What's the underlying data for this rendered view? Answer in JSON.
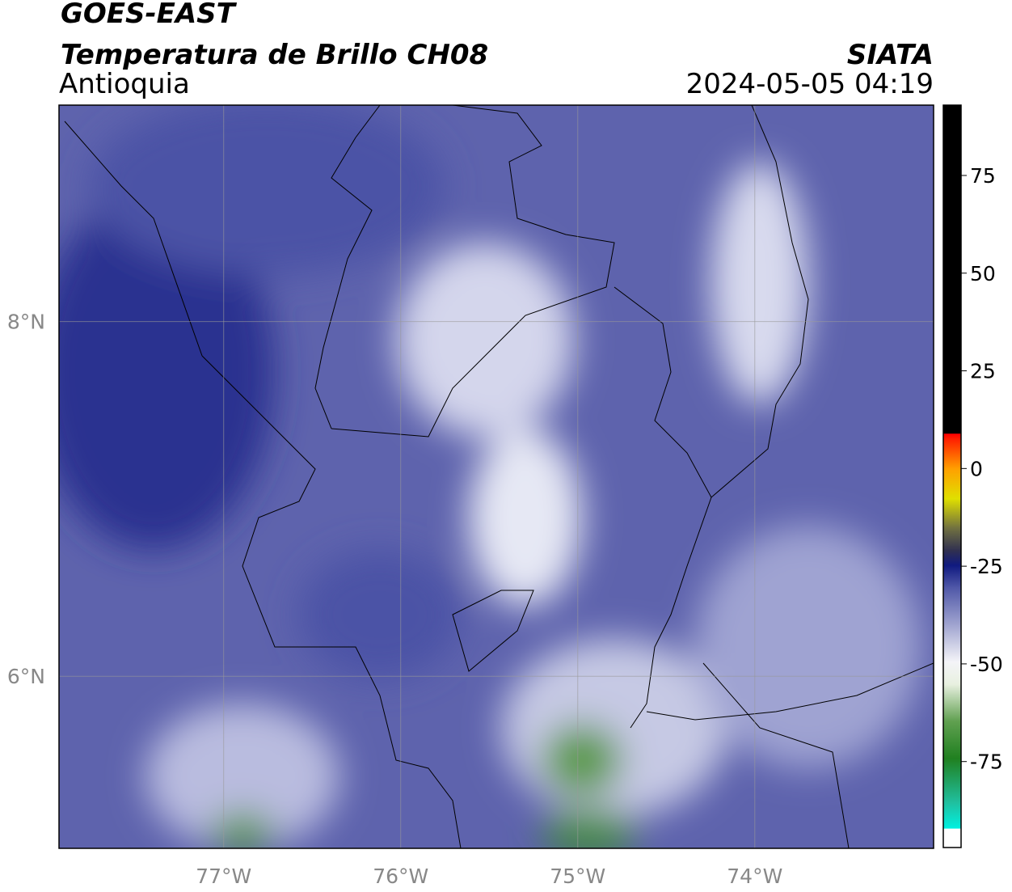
{
  "header": {
    "satellite": "GOES-EAST",
    "product": "Temperatura de Brillo CH08",
    "region": "Antioquia",
    "organization": "SIATA",
    "timestamp": "2024-05-05 04:19"
  },
  "map": {
    "lonlim": [
      -77.93,
      -72.99
    ],
    "latlim": [
      5.03,
      9.22
    ],
    "lon_ticks": [
      {
        "value": -77,
        "label": "77°W"
      },
      {
        "value": -76,
        "label": "76°W"
      },
      {
        "value": -75,
        "label": "75°W"
      },
      {
        "value": -74,
        "label": "74°W"
      }
    ],
    "lat_ticks": [
      {
        "value": 8,
        "label": "8°N"
      },
      {
        "value": 6,
        "label": "6°N"
      }
    ]
  },
  "colorbar": {
    "lim": [
      -97,
      93
    ],
    "ticks": [
      75,
      50,
      25,
      0,
      -25,
      -50,
      -75
    ]
  }
}
